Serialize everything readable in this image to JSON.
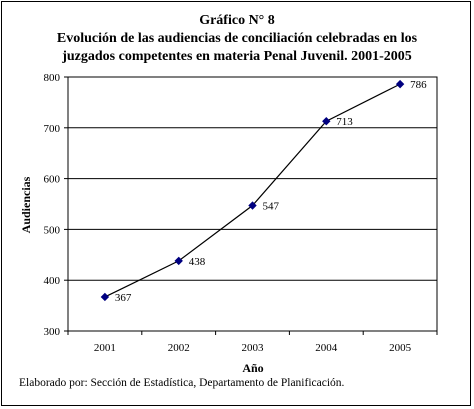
{
  "chart_data": {
    "type": "line",
    "title": "Gráfico N° 8",
    "subtitle_lines": [
      "Evolución de las audiencias de conciliación celebradas en los",
      "juzgados competentes en materia Penal Juvenil. 2001-2005"
    ],
    "xlabel": "Año",
    "ylabel": "Audiencias",
    "categories": [
      "2001",
      "2002",
      "2003",
      "2004",
      "2005"
    ],
    "values": [
      367,
      438,
      547,
      713,
      786
    ],
    "data_labels": [
      "367",
      "438",
      "547",
      "713",
      "786"
    ],
    "yticks": [
      "300",
      "400",
      "500",
      "600",
      "700",
      "800"
    ],
    "ylim": [
      300,
      800
    ],
    "grid": "horizontal",
    "legend": "none",
    "line_color": "#000000",
    "marker": "diamond",
    "marker_color": "#000080"
  },
  "footnote": "Elaborado por: Sección de Estadística, Departamento de Planificación."
}
